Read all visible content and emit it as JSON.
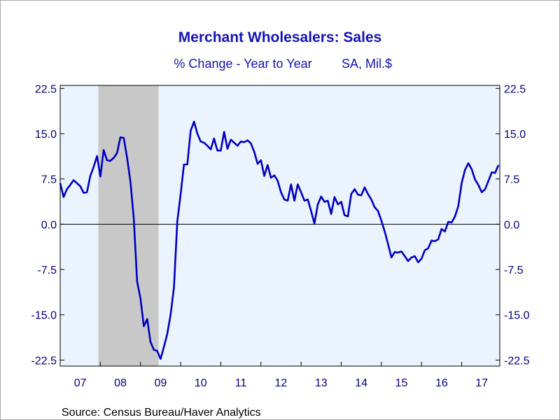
{
  "chart_data": {
    "type": "line",
    "title": "Merchant Wholesalers: Sales",
    "subtitle_left": "% Change - Year to Year",
    "subtitle_right": "SA, Mil.$",
    "source": "Source:  Census Bureau/Haver Analytics",
    "ylim": [
      -23.5,
      23
    ],
    "y_ticks": [
      "22.5",
      "15.0",
      "7.5",
      "0.0",
      "-7.5",
      "-15.0",
      "-22.5"
    ],
    "y_tick_values": [
      22.5,
      15,
      7.5,
      0,
      -7.5,
      -15,
      -22.5
    ],
    "x_start_year": 2007,
    "x_range_years": [
      2007,
      2017.95
    ],
    "x_tick_labels": [
      "07",
      "08",
      "09",
      "10",
      "11",
      "12",
      "13",
      "14",
      "15",
      "16",
      "17"
    ],
    "recession": [
      2007.95,
      2009.45
    ],
    "zero_line": true,
    "colors": {
      "series": "#0000c0",
      "text": "#000080",
      "title": "#1414b4",
      "plot_bg": "#eaf3fe",
      "recession": "#c8c8c8"
    },
    "series": [
      {
        "values": [
          6.8,
          4.5,
          5.8,
          6.5,
          7.3,
          6.8,
          6.3,
          5.2,
          5.3,
          8.0,
          9.5,
          11.3,
          7.9,
          12.3,
          10.6,
          10.5,
          11.0,
          11.8,
          14.4,
          14.3,
          11.0,
          7.0,
          1.0,
          -9.5,
          -12.3,
          -16.9,
          -15.7,
          -19.5,
          -20.8,
          -21.0,
          -22.3,
          -20.3,
          -18.2,
          -15.0,
          -10.5,
          0.5,
          5.0,
          9.9,
          9.9,
          15.5,
          17.0,
          15.0,
          13.7,
          13.5,
          13.0,
          12.4,
          14.2,
          12.2,
          12.2,
          15.3,
          12.5,
          14.0,
          13.5,
          13.0,
          13.7,
          13.6,
          13.9,
          13.4,
          12.0,
          10.0,
          10.6,
          8.0,
          9.8,
          7.7,
          8.1,
          7.2,
          5.3,
          4.1,
          3.9,
          6.6,
          3.9,
          6.6,
          5.3,
          3.9,
          4.1,
          2.2,
          0.1,
          3.3,
          4.6,
          3.7,
          3.9,
          1.7,
          4.5,
          3.3,
          3.7,
          1.5,
          1.3,
          5.0,
          5.8,
          4.9,
          4.8,
          6.1,
          5.0,
          4.1,
          2.8,
          2.2,
          0.6,
          -1.2,
          -3.3,
          -5.5,
          -4.6,
          -4.7,
          -4.5,
          -5.3,
          -6.1,
          -5.5,
          -5.3,
          -6.3,
          -5.7,
          -4.3,
          -4.0,
          -2.7,
          -2.8,
          -2.5,
          -0.8,
          -1.2,
          0.4,
          0.3,
          1.3,
          3.0,
          6.8,
          9.0,
          10.1,
          9.1,
          7.4,
          6.5,
          5.3,
          5.8,
          7.2,
          8.6,
          8.5,
          9.8
        ]
      }
    ]
  }
}
